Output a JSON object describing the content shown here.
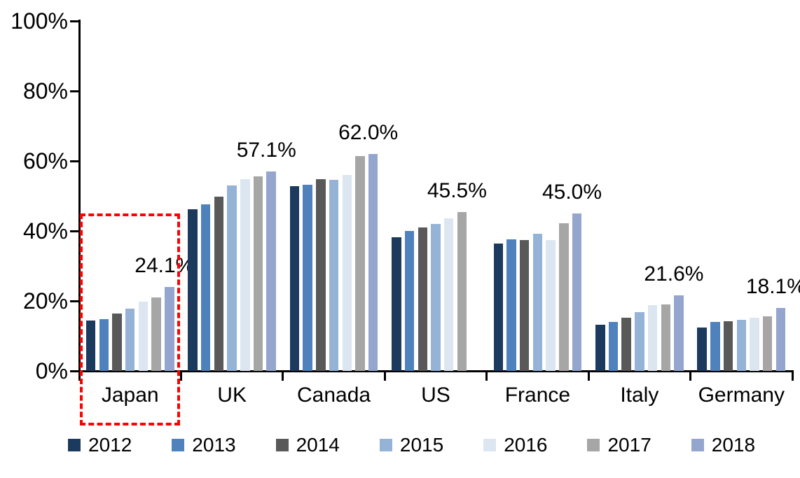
{
  "chart_data": {
    "type": "bar",
    "title": "",
    "categories": [
      "Japan",
      "UK",
      "Canada",
      "US",
      "France",
      "Italy",
      "Germany"
    ],
    "series": [
      {
        "name": "2012",
        "color": "#1c3a5e",
        "values": [
          14.5,
          46.2,
          52.8,
          38.2,
          36.4,
          13.2,
          12.5
        ]
      },
      {
        "name": "2013",
        "color": "#4f81bd",
        "values": [
          14.9,
          47.6,
          53.3,
          40.1,
          37.6,
          14.1,
          14.0
        ]
      },
      {
        "name": "2014",
        "color": "#595959",
        "values": [
          16.4,
          49.8,
          54.8,
          41.0,
          37.5,
          15.2,
          14.3
        ]
      },
      {
        "name": "2015",
        "color": "#95b3d7",
        "values": [
          17.9,
          53.0,
          54.6,
          42.1,
          39.3,
          16.8,
          14.6
        ]
      },
      {
        "name": "2016",
        "color": "#dce6f1",
        "values": [
          19.8,
          54.8,
          56.0,
          43.6,
          37.4,
          18.8,
          15.2
        ]
      },
      {
        "name": "2017",
        "color": "#a6a6a6",
        "values": [
          21.1,
          55.6,
          61.5,
          45.5,
          42.2,
          19.0,
          15.7
        ]
      },
      {
        "name": "2018",
        "color": "#95a6ce",
        "values": [
          24.1,
          57.1,
          62.0,
          null,
          45.0,
          21.6,
          18.1
        ]
      }
    ],
    "data_labels": [
      "24.1%",
      "57.1%",
      "62.0%",
      "45.5%",
      "45.0%",
      "21.6%",
      "18.1%"
    ],
    "ylim": [
      0,
      100
    ],
    "yticks": [
      0,
      20,
      40,
      60,
      80,
      100
    ],
    "ytick_labels": [
      "0%",
      "20%",
      "40%",
      "60%",
      "80%",
      "100%"
    ],
    "grid": false,
    "legend_position": "bottom",
    "highlight": {
      "category": "Japan",
      "style": "dashed-box",
      "color": "#ff0000",
      "box_top_value": 45
    }
  },
  "colors": {
    "axis": "#000000",
    "background": "#ffffff",
    "text": "#000000"
  }
}
